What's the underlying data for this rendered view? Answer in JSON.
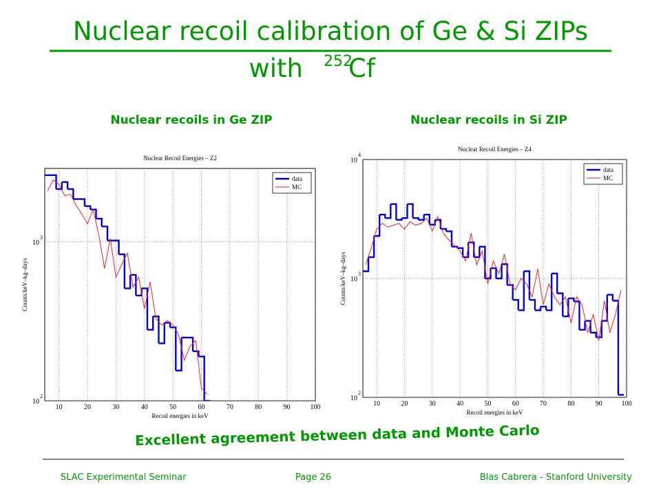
{
  "slide": {
    "title_line1": "Nuclear recoil calibration of Ge & Si ZIPs",
    "title_line2": "with",
    "title_isotope_mass": "252",
    "title_isotope": "Cf",
    "panel_titles": [
      "Nuclear recoils in Ge ZIP",
      "Nuclear recoils in Si ZIP"
    ],
    "conclusion": "Excellent agreement between data and Monte Carlo",
    "footer": {
      "left": "SLAC Experimental Seminar",
      "center": "Page 26",
      "right": "Blas Cabrera - Stanford University"
    }
  },
  "chart_data": [
    {
      "type": "histogram",
      "title": "Nuclear Recoil Energies – Z2",
      "xlabel": "Recoil energies in keV",
      "ylabel": "Counts/keV–kg–days",
      "log_y": true,
      "grid": true,
      "legend": "upper right",
      "xlim": [
        5,
        100
      ],
      "xticks": [
        10,
        20,
        30,
        40,
        50,
        60,
        70,
        80,
        90,
        100
      ],
      "ylim": [
        100,
        2900
      ],
      "yticks": [
        {
          "value": 100,
          "label": "10",
          "power": "2"
        },
        {
          "value": 1000,
          "label": "10",
          "power": "3"
        }
      ],
      "bins": [
        5,
        7,
        9,
        11,
        13,
        15,
        17,
        19,
        21,
        23,
        25,
        27,
        29,
        31,
        33,
        35,
        37,
        39,
        41,
        43,
        45,
        47,
        49,
        51,
        53,
        55,
        57,
        59,
        61,
        63
      ],
      "series": [
        {
          "name": "data",
          "color": "#0000dd",
          "style": "step",
          "values": [
            2630,
            2630,
            2150,
            2380,
            2150,
            1860,
            1860,
            1680,
            1600,
            1400,
            1250,
            1020,
            1020,
            835,
            510,
            620,
            460,
            510,
            280,
            340,
            230,
            310,
            290,
            155,
            250,
            250,
            205,
            190,
            100
          ]
        },
        {
          "name": "MC",
          "color": "#ee2222",
          "style": "line",
          "values": [
            2100,
            2450,
            2300,
            1950,
            2000,
            1700,
            1500,
            1300,
            1600,
            1100,
            680,
            1050,
            600,
            720,
            850,
            520,
            600,
            380,
            560,
            330,
            300,
            320,
            300,
            260,
            180,
            220,
            240,
            120,
            110
          ]
        }
      ]
    },
    {
      "type": "histogram",
      "title": "Nuclear Recoil Energies – Z4",
      "xlabel": "Recoil energies in keV",
      "ylabel": "Counts/keV–kg–days",
      "log_y": true,
      "grid": true,
      "legend": "upper right",
      "xlim": [
        5,
        100
      ],
      "xticks": [
        10,
        20,
        30,
        40,
        50,
        60,
        70,
        80,
        90,
        100
      ],
      "ylim": [
        100,
        10000
      ],
      "yticks": [
        {
          "value": 100,
          "label": "10",
          "power": "2"
        },
        {
          "value": 1000,
          "label": "10",
          "power": "3"
        },
        {
          "value": 10000,
          "label": "10",
          "power": "4"
        }
      ],
      "bins": [
        5,
        7,
        9,
        11,
        13,
        15,
        17,
        19,
        21,
        23,
        25,
        27,
        29,
        31,
        33,
        35,
        37,
        39,
        41,
        43,
        45,
        47,
        49,
        51,
        53,
        55,
        57,
        59,
        61,
        63,
        65,
        67,
        69,
        71,
        73,
        75,
        77,
        79,
        81,
        83,
        85,
        87,
        89,
        91,
        93,
        95,
        97,
        99
      ],
      "series": [
        {
          "name": "data",
          "color": "#0000dd",
          "style": "step",
          "values": [
            1150,
            1510,
            2275,
            3440,
            3220,
            4220,
            3110,
            3220,
            4220,
            3220,
            3110,
            3440,
            2830,
            3110,
            2610,
            2490,
            1850,
            1800,
            1510,
            2010,
            1510,
            1850,
            1000,
            1220,
            1000,
            1320,
            880,
            660,
            540,
            1150,
            660,
            540,
            580,
            540,
            1100,
            750,
            480,
            680,
            640,
            370,
            440,
            350,
            320,
            440,
            730,
            650,
            105
          ]
        },
        {
          "name": "MC",
          "color": "#ee2222",
          "style": "line",
          "values": [
            1300,
            1800,
            2600,
            2900,
            2700,
            2800,
            2900,
            2600,
            3000,
            2800,
            2900,
            3200,
            2500,
            3300,
            2400,
            2100,
            1900,
            1700,
            1400,
            2400,
            1300,
            1700,
            900,
            1400,
            1100,
            1600,
            900,
            800,
            1000,
            900,
            700,
            1200,
            600,
            900,
            700,
            600,
            700,
            420,
            700,
            600,
            350,
            500,
            300,
            650,
            350,
            500,
            800
          ]
        }
      ]
    }
  ]
}
